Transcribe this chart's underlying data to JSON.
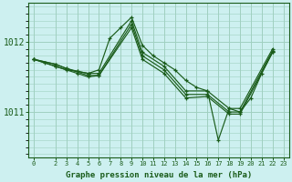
{
  "title": "Graphe pression niveau de la mer (hPa)",
  "bg_color": "#cdf0f0",
  "grid_color": "#a0d0c0",
  "line_color": "#1a5c1a",
  "marker_color": "#1a5c1a",
  "xlim": [
    -0.5,
    23.5
  ],
  "ylim": [
    1010.35,
    1012.55
  ],
  "yticks": [
    1011,
    1012
  ],
  "xticks": [
    0,
    2,
    3,
    4,
    5,
    6,
    7,
    8,
    9,
    10,
    11,
    12,
    13,
    14,
    15,
    16,
    17,
    18,
    19,
    20,
    21,
    22,
    23
  ],
  "series": [
    {
      "x": [
        0,
        1,
        2,
        3,
        4,
        5,
        6,
        7,
        8,
        9,
        10,
        11,
        12,
        13,
        14,
        15,
        16,
        17,
        18,
        19,
        20,
        21,
        22
      ],
      "y": [
        1011.75,
        1011.7,
        1011.65,
        1011.6,
        1011.58,
        1011.55,
        1011.6,
        1012.05,
        1012.2,
        1012.35,
        1011.95,
        1011.8,
        1011.7,
        1011.6,
        1011.45,
        1011.35,
        1011.3,
        1010.6,
        1011.05,
        1011.0,
        1011.2,
        1011.55,
        1011.85
      ]
    },
    {
      "x": [
        0,
        2,
        3,
        4,
        5,
        6,
        9,
        10,
        12,
        14,
        16,
        18,
        19,
        22
      ],
      "y": [
        1011.75,
        1011.68,
        1011.62,
        1011.58,
        1011.55,
        1011.55,
        1012.3,
        1011.85,
        1011.65,
        1011.3,
        1011.3,
        1011.05,
        1011.05,
        1011.9
      ]
    },
    {
      "x": [
        0,
        2,
        3,
        5,
        6,
        9,
        10,
        12,
        14,
        16,
        18,
        19,
        22
      ],
      "y": [
        1011.75,
        1011.68,
        1011.62,
        1011.52,
        1011.52,
        1012.25,
        1011.8,
        1011.6,
        1011.25,
        1011.25,
        1011.0,
        1011.0,
        1011.87
      ]
    },
    {
      "x": [
        0,
        2,
        4,
        5,
        6,
        9,
        10,
        12,
        14,
        16,
        18,
        19,
        22
      ],
      "y": [
        1011.75,
        1011.65,
        1011.55,
        1011.5,
        1011.52,
        1012.2,
        1011.75,
        1011.55,
        1011.2,
        1011.22,
        1010.97,
        1010.97,
        1011.85
      ]
    }
  ]
}
